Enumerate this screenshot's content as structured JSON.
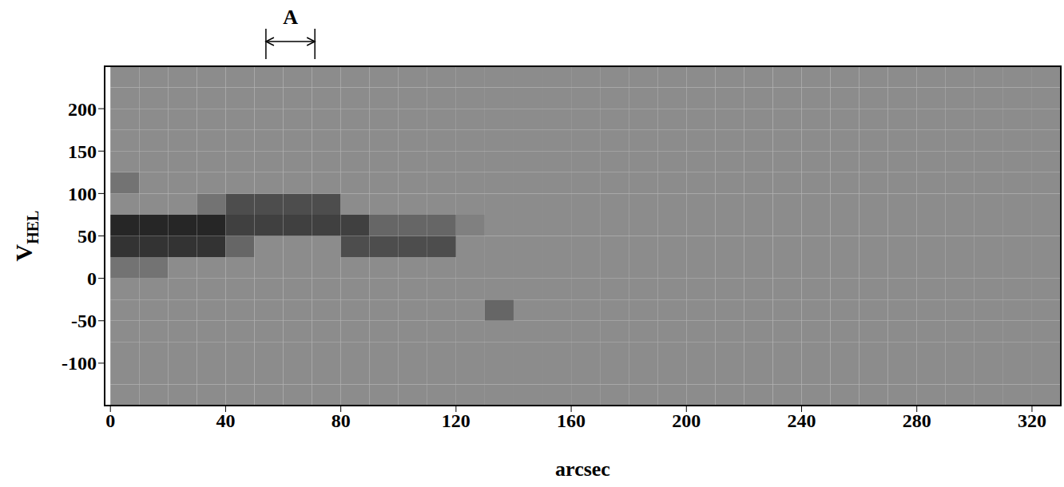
{
  "chart_data": {
    "type": "heatmap",
    "xlabel": "arcsec",
    "ylabel": "V",
    "ylabel_subscript": "HEL",
    "grid": false,
    "xlim": [
      -2,
      330
    ],
    "ylim": [
      -150,
      250
    ],
    "xticks": [
      0,
      40,
      80,
      120,
      160,
      200,
      240,
      280,
      320
    ],
    "yticks": [
      -100,
      -50,
      0,
      50,
      100,
      150,
      200
    ],
    "xbins": [
      0,
      10,
      20,
      30,
      40,
      50,
      60,
      70,
      80,
      90,
      100,
      110,
      120,
      130,
      140,
      150,
      160,
      170,
      180,
      190,
      200,
      210,
      220,
      230,
      240,
      250,
      260,
      270,
      280,
      290,
      300,
      310,
      320,
      330
    ],
    "ybins": [
      -150,
      -125,
      -100,
      -75,
      -50,
      -25,
      0,
      25,
      50,
      75,
      100,
      125,
      150,
      175,
      200,
      225,
      250
    ],
    "cells": [
      [
        0.45,
        0.45,
        0.45,
        0.45,
        0.45,
        0.45,
        0.45,
        0.45,
        0.45,
        0.45,
        0.45,
        0.45,
        0.45,
        0.45,
        0.45,
        0.45,
        0.45,
        0.45,
        0.45,
        0.45,
        0.45,
        0.45,
        0.45,
        0.45,
        0.45,
        0.45,
        0.45,
        0.45,
        0.45,
        0.45,
        0.45,
        0.45,
        0.45
      ],
      [
        0.45,
        0.45,
        0.45,
        0.45,
        0.45,
        0.45,
        0.45,
        0.45,
        0.45,
        0.45,
        0.45,
        0.45,
        0.45,
        0.45,
        0.45,
        0.45,
        0.45,
        0.45,
        0.45,
        0.45,
        0.45,
        0.45,
        0.45,
        0.45,
        0.45,
        0.45,
        0.45,
        0.45,
        0.45,
        0.45,
        0.45,
        0.45,
        0.45
      ],
      [
        0.45,
        0.45,
        0.45,
        0.45,
        0.45,
        0.45,
        0.45,
        0.45,
        0.45,
        0.45,
        0.45,
        0.45,
        0.45,
        0.45,
        0.45,
        0.45,
        0.45,
        0.45,
        0.45,
        0.45,
        0.45,
        0.45,
        0.45,
        0.45,
        0.45,
        0.45,
        0.45,
        0.45,
        0.45,
        0.45,
        0.45,
        0.45,
        0.45
      ],
      [
        0.45,
        0.45,
        0.45,
        0.45,
        0.45,
        0.45,
        0.45,
        0.45,
        0.45,
        0.45,
        0.45,
        0.45,
        0.45,
        0.45,
        0.45,
        0.45,
        0.45,
        0.45,
        0.45,
        0.45,
        0.45,
        0.45,
        0.45,
        0.45,
        0.45,
        0.45,
        0.45,
        0.45,
        0.45,
        0.45,
        0.45,
        0.45,
        0.45
      ],
      [
        0.45,
        0.45,
        0.45,
        0.45,
        0.45,
        0.45,
        0.45,
        0.45,
        0.45,
        0.45,
        0.45,
        0.45,
        0.45,
        0.6,
        0.45,
        0.45,
        0.45,
        0.45,
        0.45,
        0.45,
        0.45,
        0.45,
        0.45,
        0.45,
        0.45,
        0.45,
        0.45,
        0.45,
        0.45,
        0.45,
        0.45,
        0.45,
        0.45
      ],
      [
        0.45,
        0.45,
        0.45,
        0.45,
        0.45,
        0.45,
        0.45,
        0.45,
        0.45,
        0.45,
        0.45,
        0.45,
        0.45,
        0.45,
        0.45,
        0.45,
        0.45,
        0.45,
        0.45,
        0.45,
        0.45,
        0.45,
        0.45,
        0.45,
        0.45,
        0.45,
        0.45,
        0.45,
        0.45,
        0.45,
        0.45,
        0.45,
        0.45
      ],
      [
        0.55,
        0.55,
        0.45,
        0.45,
        0.45,
        0.45,
        0.45,
        0.45,
        0.45,
        0.45,
        0.45,
        0.45,
        0.45,
        0.45,
        0.45,
        0.45,
        0.45,
        0.45,
        0.45,
        0.45,
        0.45,
        0.45,
        0.45,
        0.45,
        0.45,
        0.45,
        0.45,
        0.45,
        0.45,
        0.45,
        0.45,
        0.45,
        0.45
      ],
      [
        0.8,
        0.8,
        0.8,
        0.8,
        0.6,
        0.45,
        0.45,
        0.45,
        0.7,
        0.7,
        0.7,
        0.7,
        0.45,
        0.45,
        0.45,
        0.45,
        0.45,
        0.45,
        0.45,
        0.45,
        0.45,
        0.45,
        0.45,
        0.45,
        0.45,
        0.45,
        0.45,
        0.45,
        0.45,
        0.45,
        0.45,
        0.45,
        0.45
      ],
      [
        0.85,
        0.85,
        0.85,
        0.85,
        0.75,
        0.75,
        0.75,
        0.75,
        0.75,
        0.6,
        0.6,
        0.6,
        0.5,
        0.45,
        0.45,
        0.45,
        0.45,
        0.45,
        0.45,
        0.45,
        0.45,
        0.45,
        0.45,
        0.45,
        0.45,
        0.45,
        0.45,
        0.45,
        0.45,
        0.45,
        0.45,
        0.45,
        0.45
      ],
      [
        0.45,
        0.45,
        0.45,
        0.55,
        0.7,
        0.7,
        0.7,
        0.7,
        0.45,
        0.45,
        0.45,
        0.45,
        0.45,
        0.45,
        0.45,
        0.45,
        0.45,
        0.45,
        0.45,
        0.45,
        0.45,
        0.45,
        0.45,
        0.45,
        0.45,
        0.45,
        0.45,
        0.45,
        0.45,
        0.45,
        0.45,
        0.45,
        0.45
      ],
      [
        0.55,
        0.45,
        0.45,
        0.45,
        0.45,
        0.45,
        0.45,
        0.45,
        0.45,
        0.45,
        0.45,
        0.45,
        0.45,
        0.45,
        0.45,
        0.45,
        0.45,
        0.45,
        0.45,
        0.45,
        0.45,
        0.45,
        0.45,
        0.45,
        0.45,
        0.45,
        0.45,
        0.45,
        0.45,
        0.45,
        0.45,
        0.45,
        0.45
      ],
      [
        0.45,
        0.45,
        0.45,
        0.45,
        0.45,
        0.45,
        0.45,
        0.45,
        0.45,
        0.45,
        0.45,
        0.45,
        0.45,
        0.45,
        0.45,
        0.45,
        0.45,
        0.45,
        0.45,
        0.45,
        0.45,
        0.45,
        0.45,
        0.45,
        0.45,
        0.45,
        0.45,
        0.45,
        0.45,
        0.45,
        0.45,
        0.45,
        0.45
      ],
      [
        0.45,
        0.45,
        0.45,
        0.45,
        0.45,
        0.45,
        0.45,
        0.45,
        0.45,
        0.45,
        0.45,
        0.45,
        0.45,
        0.45,
        0.45,
        0.45,
        0.45,
        0.45,
        0.45,
        0.45,
        0.45,
        0.45,
        0.45,
        0.45,
        0.45,
        0.45,
        0.45,
        0.45,
        0.45,
        0.45,
        0.45,
        0.45,
        0.45
      ],
      [
        0.45,
        0.45,
        0.45,
        0.45,
        0.45,
        0.45,
        0.45,
        0.45,
        0.45,
        0.45,
        0.45,
        0.45,
        0.45,
        0.45,
        0.45,
        0.45,
        0.45,
        0.45,
        0.45,
        0.45,
        0.45,
        0.45,
        0.45,
        0.45,
        0.45,
        0.45,
        0.45,
        0.45,
        0.45,
        0.45,
        0.45,
        0.45,
        0.45
      ],
      [
        0.45,
        0.45,
        0.45,
        0.45,
        0.45,
        0.45,
        0.45,
        0.45,
        0.45,
        0.45,
        0.45,
        0.45,
        0.45,
        0.45,
        0.45,
        0.45,
        0.45,
        0.45,
        0.45,
        0.45,
        0.45,
        0.45,
        0.45,
        0.45,
        0.45,
        0.45,
        0.45,
        0.45,
        0.45,
        0.45,
        0.45,
        0.45,
        0.45
      ],
      [
        0.45,
        0.45,
        0.45,
        0.45,
        0.45,
        0.45,
        0.45,
        0.45,
        0.45,
        0.45,
        0.45,
        0.45,
        0.45,
        0.45,
        0.45,
        0.45,
        0.45,
        0.45,
        0.45,
        0.45,
        0.45,
        0.45,
        0.45,
        0.45,
        0.45,
        0.45,
        0.45,
        0.45,
        0.45,
        0.45,
        0.45,
        0.45,
        0.45
      ]
    ],
    "annotations": [
      {
        "text": "A",
        "x": [
          54,
          71
        ]
      }
    ]
  }
}
